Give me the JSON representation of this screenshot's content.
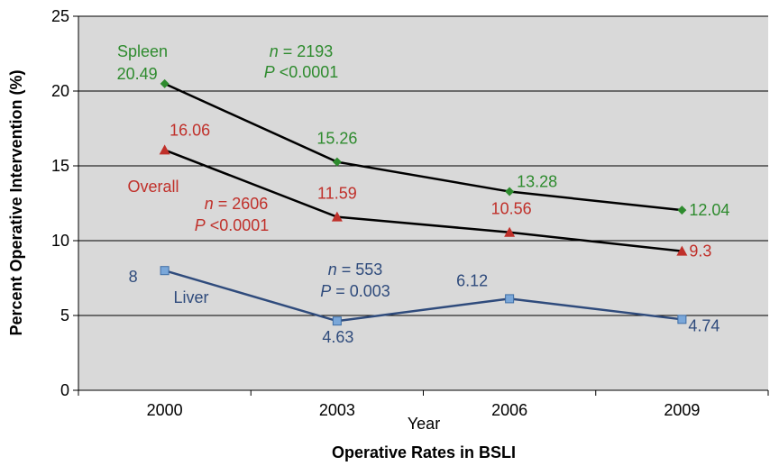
{
  "chart_data": {
    "type": "line",
    "title": "",
    "xlabel": "Year",
    "caption": "Operative Rates in BSLI",
    "ylabel": "Percent Operative Intervention (%)",
    "ylim": [
      0,
      25
    ],
    "yticks": [
      "0",
      "5",
      "10",
      "15",
      "20",
      "25"
    ],
    "categories": [
      "2000",
      "2003",
      "2006",
      "2009"
    ],
    "grid": true,
    "series": [
      {
        "key": "spleen",
        "name": "Spleen",
        "color": "#2e8b2e",
        "marker": "diamond",
        "values": [
          20.49,
          15.26,
          13.28,
          12.04
        ],
        "labels": [
          "20.49",
          "15.26",
          "13.28",
          "12.04"
        ],
        "stat_n": "n",
        "stat_n_value": " = 2193",
        "stat_p": "P",
        "stat_p_value": " <0.0001"
      },
      {
        "key": "overall",
        "name": "Overall",
        "color": "#c0302a",
        "marker": "triangle",
        "values": [
          16.06,
          11.59,
          10.56,
          9.3
        ],
        "labels": [
          "16.06",
          "11.59",
          "10.56",
          "9.3"
        ],
        "stat_n": "n",
        "stat_n_value": " = 2606",
        "stat_p": "P",
        "stat_p_value": " <0.0001"
      },
      {
        "key": "liver",
        "name": "Liver",
        "color": "#2f4b7c",
        "marker": "square",
        "values": [
          8,
          4.63,
          6.12,
          4.74
        ],
        "labels": [
          "8",
          "4.63",
          "6.12",
          "4.74"
        ],
        "stat_n": "n",
        "stat_n_value": " = 553",
        "stat_p": "P",
        "stat_p_value": " = 0.003"
      }
    ]
  }
}
